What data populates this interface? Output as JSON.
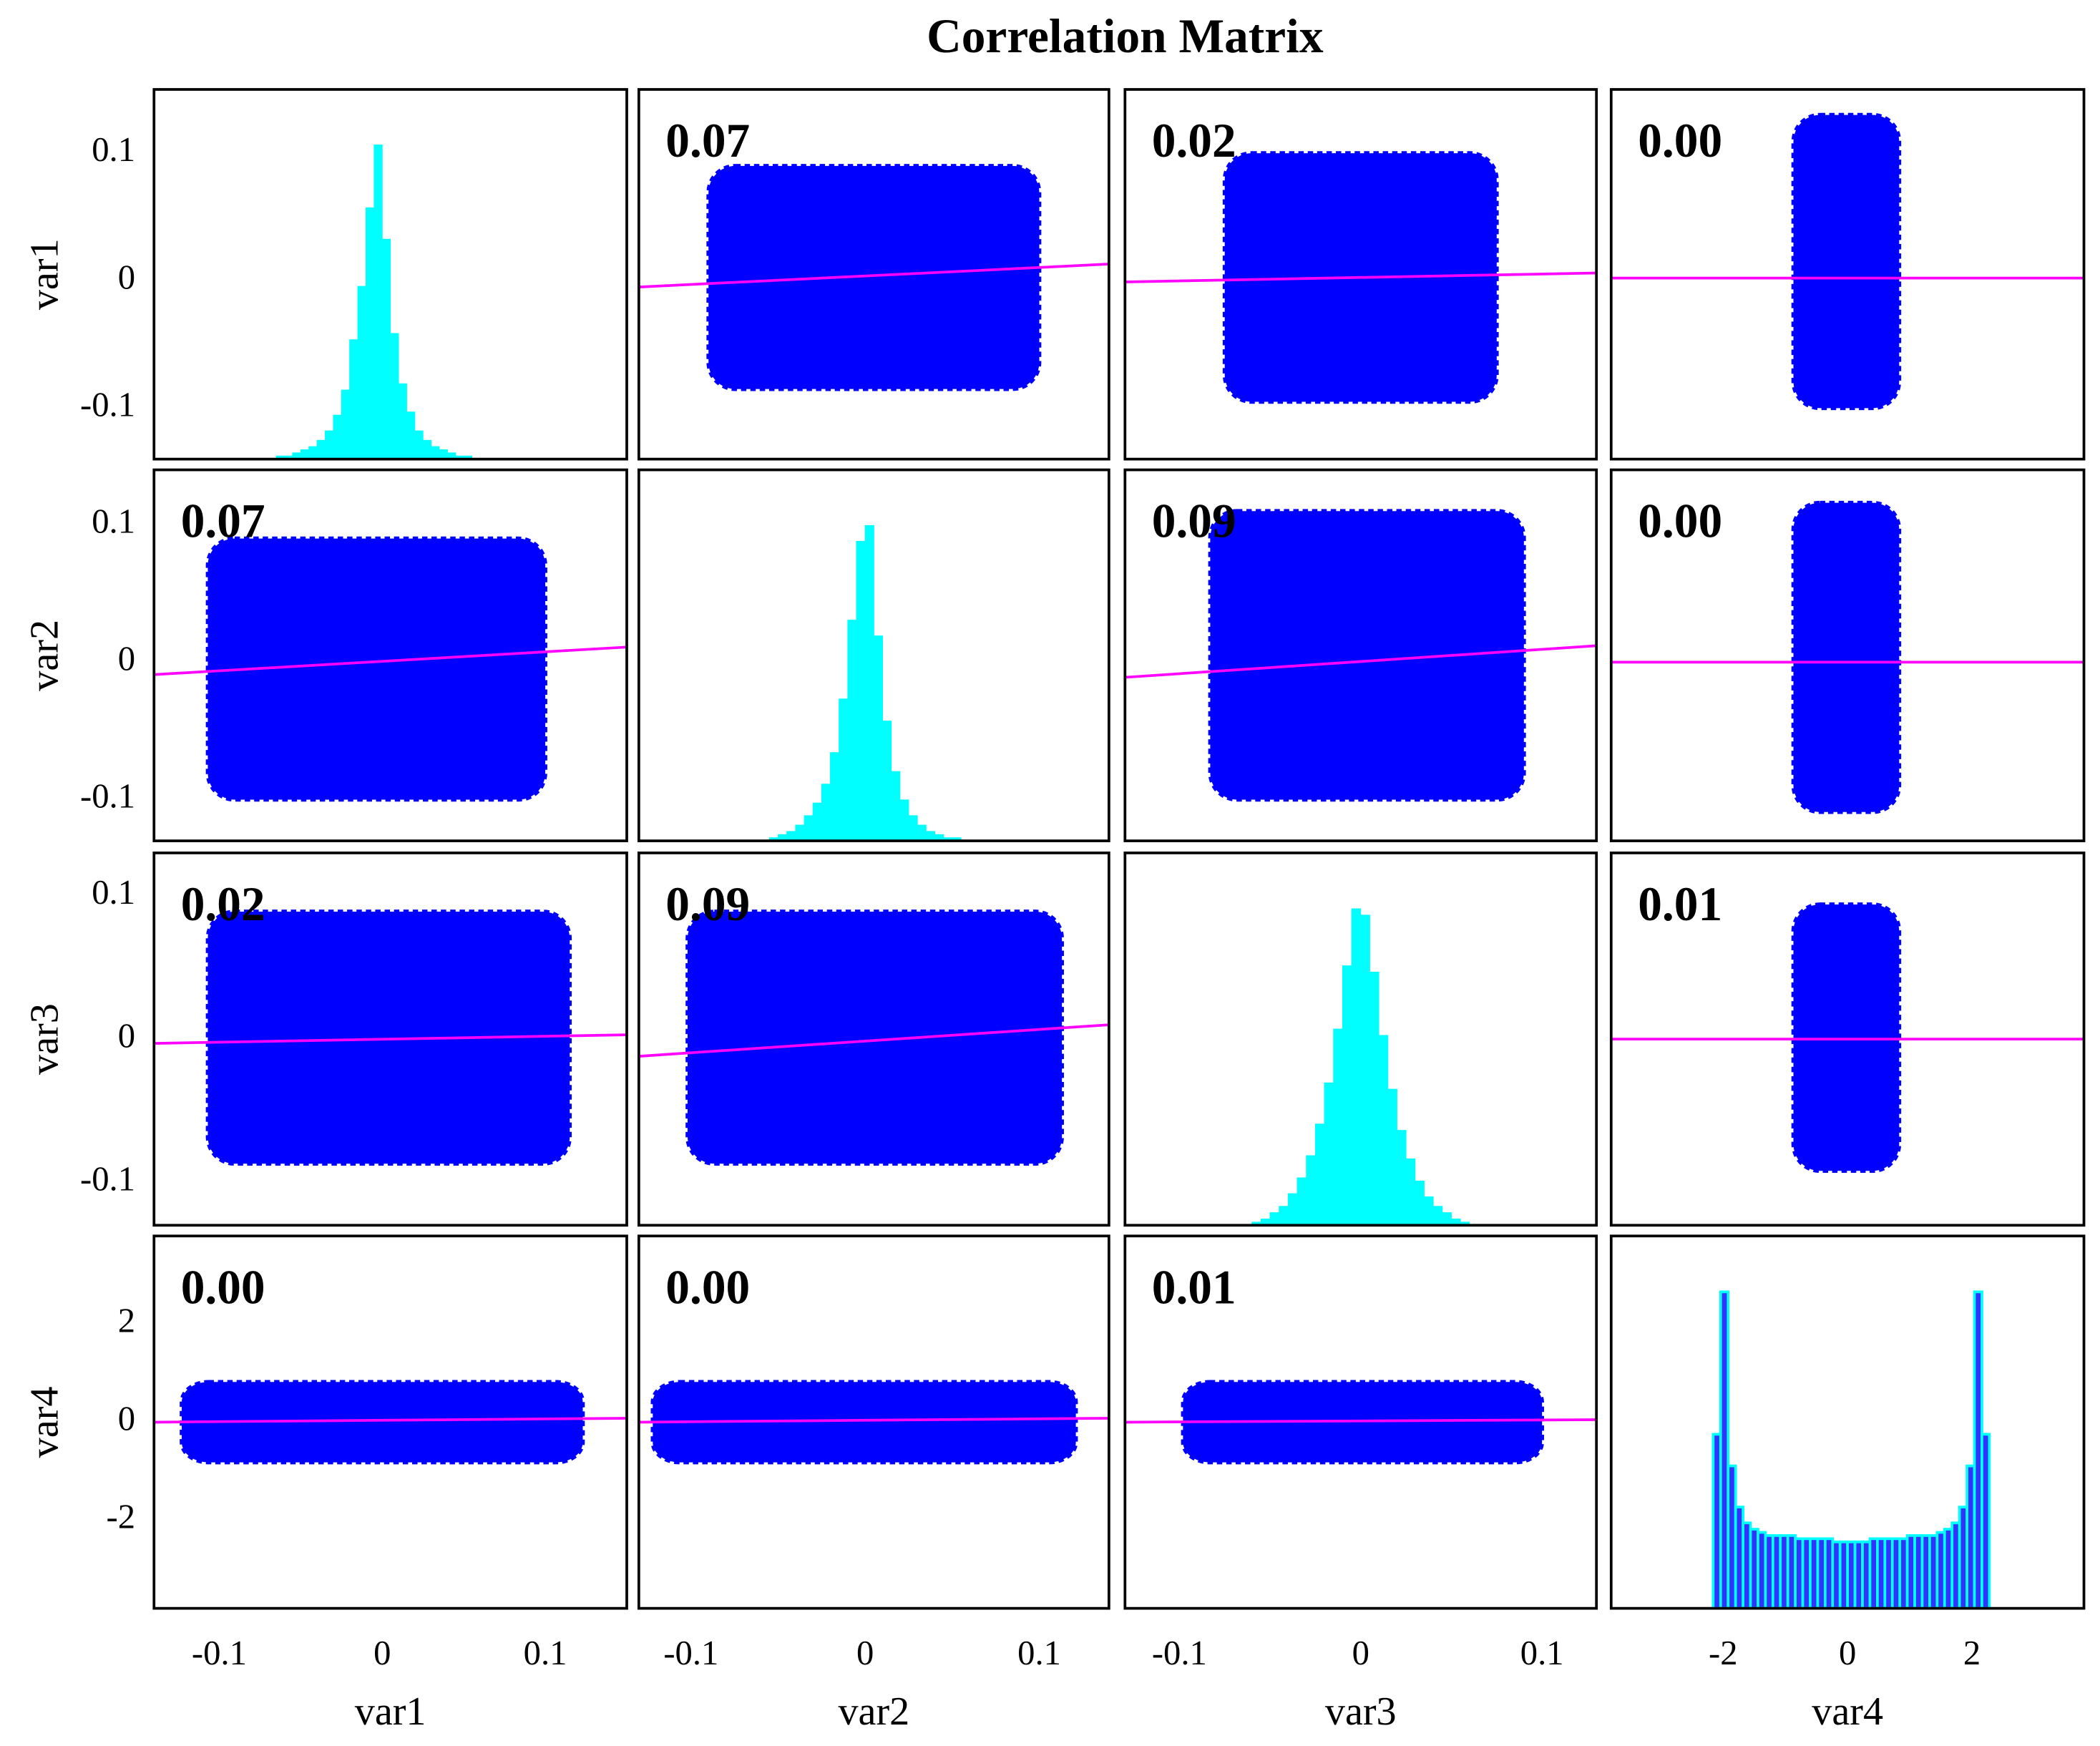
{
  "chart_data": {
    "type": "scatter_matrix",
    "title": "Correlation Matrix",
    "variables": [
      "var1",
      "var2",
      "var3",
      "var4"
    ],
    "lims": [
      [
        -0.14,
        0.15
      ],
      [
        -0.13,
        0.14
      ],
      [
        -0.13,
        0.13
      ],
      [
        -3.8,
        3.8
      ]
    ],
    "ticks": [
      [
        -0.1,
        0,
        0.1
      ],
      [
        -0.1,
        0,
        0.1
      ],
      [
        -0.1,
        0,
        0.1
      ],
      [
        -2,
        0,
        2
      ]
    ],
    "point_color": "#0000ff",
    "fit_color": "#ff00ff",
    "cells": [
      [
        {
          "type": "histogram",
          "color": "#00ffff",
          "bins": [
            -0.065,
            -0.06,
            -0.055,
            -0.05,
            -0.045,
            -0.04,
            -0.035,
            -0.03,
            -0.025,
            -0.02,
            -0.015,
            -0.01,
            -0.005,
            0,
            0.005,
            0.01,
            0.015,
            0.02,
            0.025,
            0.03,
            0.035,
            0.04,
            0.045,
            0.05,
            0.055,
            0.06
          ],
          "counts": [
            1,
            1,
            2,
            3,
            4,
            6,
            9,
            14,
            22,
            38,
            55,
            80,
            100,
            70,
            40,
            24,
            15,
            9,
            6,
            4,
            3,
            2,
            1,
            1,
            0
          ]
        },
        {
          "type": "scatter",
          "value": 0.07,
          "cloud": {
            "x": [
              -0.09,
              0.1
            ],
            "y": [
              -0.085,
              0.09
            ]
          },
          "fit": [
            -0.005,
            0.013
          ]
        },
        {
          "type": "scatter",
          "value": 0.02,
          "cloud": {
            "x": [
              -0.075,
              0.075
            ],
            "y": [
              -0.095,
              0.1
            ]
          },
          "fit": [
            -0.001,
            0.006
          ]
        },
        {
          "type": "scatter",
          "value": 0,
          "value_label": "0.00",
          "cloud": {
            "x": [
              -0.87,
              0.83
            ],
            "y": [
              -0.1,
              0.13
            ]
          },
          "fit": [
            0.002,
            0.002
          ]
        }
      ],
      [
        {
          "type": "scatter",
          "value": 0.07,
          "cloud": {
            "x": [
              -0.107,
              0.1
            ],
            "y": [
              -0.1,
              0.09
            ]
          },
          "fit": [
            -0.009,
            0.011
          ]
        },
        {
          "type": "histogram",
          "color": "#00ffff",
          "bins": [
            -0.055,
            -0.05,
            -0.045,
            -0.04,
            -0.035,
            -0.03,
            -0.025,
            -0.02,
            -0.015,
            -0.01,
            -0.005,
            0,
            0.005,
            0.01,
            0.015,
            0.02,
            0.025,
            0.03,
            0.035,
            0.04,
            0.045,
            0.05,
            0.055,
            0.06
          ],
          "counts": [
            1,
            2,
            3,
            5,
            8,
            12,
            18,
            28,
            45,
            70,
            95,
            100,
            65,
            38,
            22,
            13,
            8,
            5,
            3,
            2,
            1,
            1,
            0
          ]
        },
        {
          "type": "scatter",
          "value": 0.09,
          "cloud": {
            "x": [
              -0.083,
              0.09
            ],
            "y": [
              -0.1,
              0.11
            ]
          },
          "fit": [
            -0.011,
            0.012
          ]
        },
        {
          "type": "scatter",
          "value": 0,
          "value_label": "0.00",
          "cloud": {
            "x": [
              -0.87,
              0.83
            ],
            "y": [
              -0.109,
              0.116
            ]
          },
          "fit": [
            0,
            0
          ]
        }
      ],
      [
        {
          "type": "scatter",
          "value": 0.02,
          "cloud": {
            "x": [
              -0.107,
              0.115
            ],
            "y": [
              -0.087,
              0.089
            ]
          },
          "fit": [
            -0.003,
            0.003
          ]
        },
        {
          "type": "scatter",
          "value": 0.09,
          "cloud": {
            "x": [
              -0.102,
              0.113
            ],
            "y": [
              -0.087,
              0.089
            ]
          },
          "fit": [
            -0.012,
            0.01
          ]
        },
        {
          "type": "histogram",
          "color": "#00ffff",
          "bins": [
            -0.06,
            -0.055,
            -0.05,
            -0.045,
            -0.04,
            -0.035,
            -0.03,
            -0.025,
            -0.02,
            -0.015,
            -0.01,
            -0.005,
            0,
            0.005,
            0.01,
            0.015,
            0.02,
            0.025,
            0.03,
            0.035,
            0.04,
            0.045,
            0.05,
            0.055,
            0.06
          ],
          "counts": [
            1,
            2,
            4,
            6,
            10,
            15,
            22,
            32,
            45,
            62,
            82,
            100,
            98,
            80,
            60,
            43,
            30,
            21,
            14,
            9,
            6,
            4,
            2,
            1
          ]
        },
        {
          "type": "scatter",
          "value": 0.01,
          "cloud": {
            "x": [
              -0.87,
              0.83
            ],
            "y": [
              -0.092,
              0.094
            ]
          },
          "fit": [
            0,
            0
          ]
        }
      ],
      [
        {
          "type": "scatter",
          "value": 0,
          "value_label": "0.00",
          "cloud": {
            "x": [
              -0.123,
              0.123
            ],
            "y": [
              -0.82,
              0.82
            ]
          },
          "fit": [
            0,
            0.08
          ]
        },
        {
          "type": "scatter",
          "value": 0,
          "value_label": "0.00",
          "cloud": {
            "x": [
              -0.122,
              0.121
            ],
            "y": [
              -0.82,
              0.82
            ]
          },
          "fit": [
            0,
            0.08
          ]
        },
        {
          "type": "scatter",
          "value": 0.01,
          "cloud": {
            "x": [
              -0.098,
              0.1
            ],
            "y": [
              -0.82,
              0.82
            ]
          },
          "fit": [
            0,
            0.05
          ]
        },
        {
          "type": "histogram",
          "color": "#3333ff",
          "edge_color": "#00ffff",
          "bins": [
            -2.16,
            -2.04,
            -1.92,
            -1.8,
            -1.68,
            -1.56,
            -1.44,
            -1.32,
            -1.2,
            -1.08,
            -0.96,
            -0.84,
            -0.72,
            -0.6,
            -0.48,
            -0.36,
            -0.24,
            -0.12,
            0,
            0.12,
            0.24,
            0.36,
            0.48,
            0.6,
            0.72,
            0.84,
            0.96,
            1.08,
            1.2,
            1.32,
            1.44,
            1.56,
            1.68,
            1.8,
            1.92,
            2.04,
            2.16,
            2.28
          ],
          "counts": [
            55,
            100,
            45,
            32,
            27,
            25,
            24,
            23,
            23,
            23,
            23,
            22,
            22,
            22,
            22,
            22,
            21,
            21,
            21,
            21,
            21,
            22,
            22,
            22,
            22,
            22,
            23,
            23,
            23,
            23,
            24,
            25,
            27,
            32,
            45,
            100,
            55
          ]
        }
      ]
    ]
  }
}
